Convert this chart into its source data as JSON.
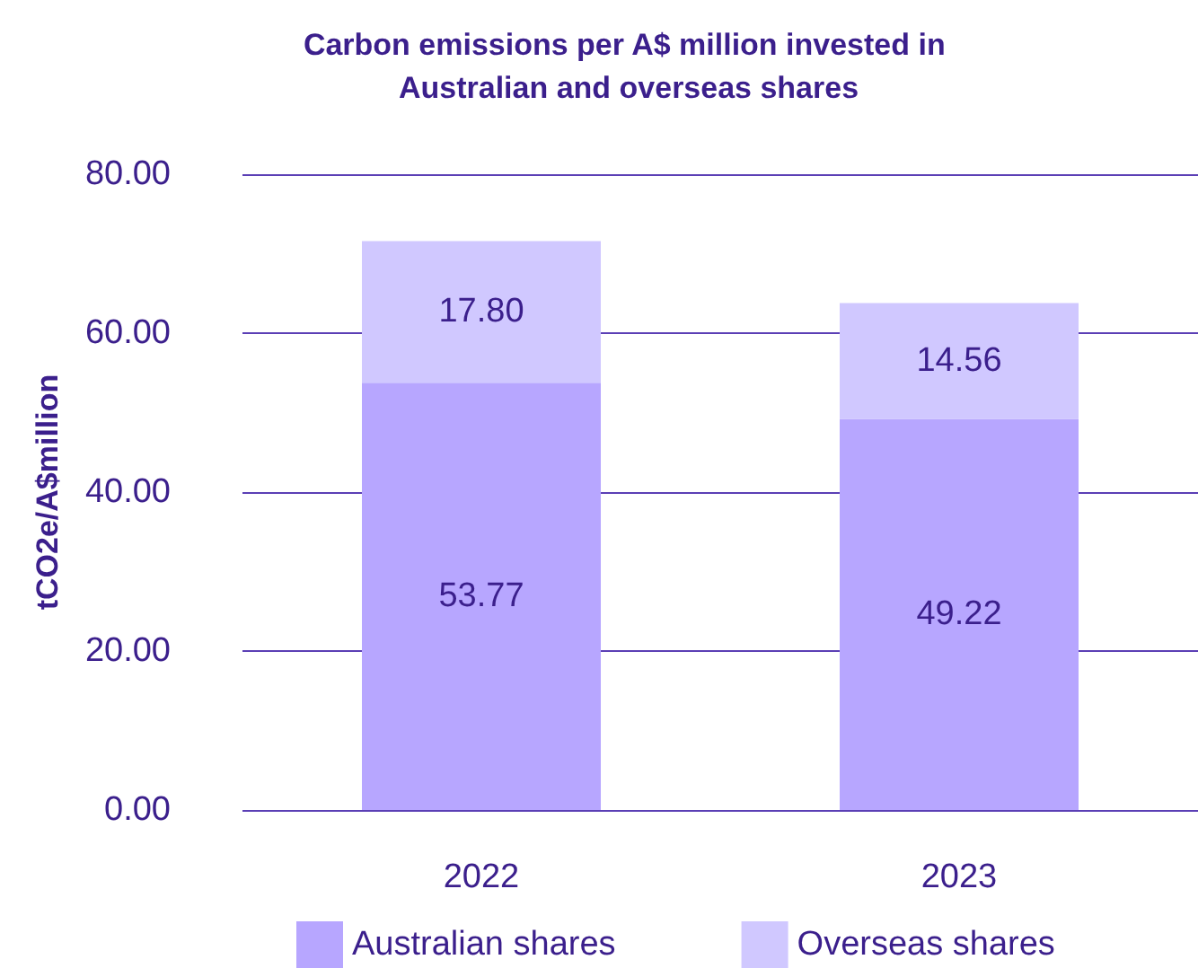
{
  "chart_data": {
    "type": "bar",
    "title": "Carbon emissions per A$ million invested in Australian and overseas shares",
    "ylabel": "tCO2e/A$million",
    "categories": [
      "2022",
      "2023"
    ],
    "series": [
      {
        "name": "Australian shares",
        "color": "#b7a6ff",
        "values": [
          53.77,
          49.22
        ],
        "value_labels": [
          "53.77",
          "49.22"
        ]
      },
      {
        "name": "Overseas shares",
        "color": "#d0c8ff",
        "values": [
          17.8,
          14.56
        ],
        "value_labels": [
          "17.80",
          "14.56"
        ]
      }
    ],
    "stacked": true,
    "ylim": [
      0,
      80
    ],
    "yticks": [
      {
        "value": 0,
        "label": "0.00"
      },
      {
        "value": 20,
        "label": "20.00"
      },
      {
        "value": 40,
        "label": "40.00"
      },
      {
        "value": 60,
        "label": "60.00"
      },
      {
        "value": 80,
        "label": "80.00"
      }
    ],
    "grid": "y",
    "legend": "bottom"
  }
}
